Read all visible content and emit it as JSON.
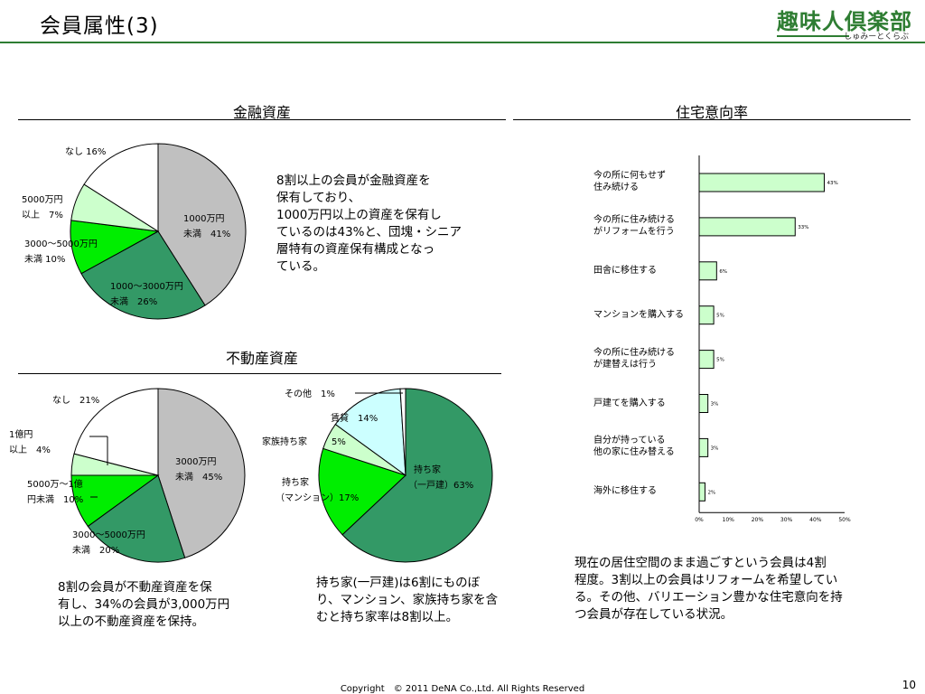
{
  "header": {
    "title": "会員属性(3)",
    "logo_main": "趣味人倶楽部",
    "logo_sub": "しゅみーとくらぶ"
  },
  "sections": {
    "financial": "金融資産",
    "housing": "住宅意向率",
    "real_estate": "不動産資産"
  },
  "financial_pie": {
    "labels": {
      "none": "なし 16%",
      "over5000_a": "5000万円",
      "over5000_b": "以上　7%",
      "r3000_5000_a": "3000～5000万円",
      "r3000_5000_b": "未満 10%",
      "r1000_3000_a": "1000～3000万円",
      "r1000_3000_b": "未満　26%",
      "under1000_a": "1000万円",
      "under1000_b": "未満　41%"
    },
    "note": [
      "8割以上の会員が金融資産を",
      "保有しており、",
      "1000万円以上の資産を保有し",
      "ているのは43%と、団塊・シニア",
      "層特有の資産保有構成となっ",
      "ている。"
    ]
  },
  "real_estate_pie": {
    "labels": {
      "none": "なし　21%",
      "over1oku_a": "1億円",
      "over1oku_b": "以上　4%",
      "r5000_1oku_a": "5000万～1億",
      "r5000_1oku_b": "円未満　10%",
      "r3000_5000_a": "3000～5000万円",
      "r3000_5000_b": "未満　20%",
      "under3000_a": "3000万円",
      "under3000_b": "未満　45%"
    },
    "note": [
      "8割の会員が不動産資産を保",
      "有し、34%の会員が3,000万円",
      "以上の不動産資産を保持。"
    ]
  },
  "housing_pie": {
    "labels": {
      "other": "その他　1%",
      "rent": "賃貸　14%",
      "family": "家族持ち家",
      "family_pct": "5%",
      "mansion_a": "持ち家",
      "mansion_b": "（マンション）17%",
      "house_a": "持ち家",
      "house_b": "（一戸建）63%"
    },
    "note": [
      "持ち家(一戸建)は6割にものぼ",
      "り、マンション、家族持ち家を含",
      "むと持ち家率は8割以上。"
    ]
  },
  "bar_chart": {
    "ticks": [
      "0%",
      "10%",
      "20%",
      "30%",
      "40%",
      "50%"
    ],
    "items": [
      {
        "label_a": "今の所に何もせず",
        "label_b": "住み続ける",
        "pct": "43%"
      },
      {
        "label_a": "今の所に住み続ける",
        "label_b": "がリフォームを行う",
        "pct": "33%"
      },
      {
        "label_a": "田舎に移住する",
        "label_b": "",
        "pct": "6%"
      },
      {
        "label_a": "マンションを購入する",
        "label_b": "",
        "pct": "5%"
      },
      {
        "label_a": "今の所に住み続ける",
        "label_b": "が建替えは行う",
        "pct": "5%"
      },
      {
        "label_a": "戸建てを購入する",
        "label_b": "",
        "pct": "3%"
      },
      {
        "label_a": "自分が持っている",
        "label_b": "他の家に住み替える",
        "pct": "3%"
      },
      {
        "label_a": "海外に移住する",
        "label_b": "",
        "pct": "2%"
      }
    ],
    "note": [
      "現在の居住空間のまま過ごすという会員は4割",
      "程度。3割以上の会員はリフォームを希望してい",
      "る。その他、バリエーション豊かな住宅意向を持",
      "つ会員が存在している状況。"
    ]
  },
  "chart_data": [
    {
      "type": "pie",
      "title": "金融資産",
      "categories": [
        "1000万円未満",
        "1000～3000万円未満",
        "3000～5000万円未満",
        "5000万円以上",
        "なし"
      ],
      "values": [
        41,
        26,
        10,
        7,
        16
      ],
      "colors": [
        "#c0c0c0",
        "#339966",
        "#00ee00",
        "#ccffcc",
        "#ffffff"
      ]
    },
    {
      "type": "pie",
      "title": "不動産資産",
      "categories": [
        "3000万円未満",
        "3000～5000万円未満",
        "5000万～1億円未満",
        "1億円以上",
        "なし"
      ],
      "values": [
        45,
        20,
        10,
        4,
        21
      ],
      "colors": [
        "#c0c0c0",
        "#339966",
        "#00ee00",
        "#ccffcc",
        "#ffffff"
      ]
    },
    {
      "type": "pie",
      "categories": [
        "持ち家（一戸建）",
        "持ち家（マンション）",
        "家族持ち家",
        "賃貸",
        "その他"
      ],
      "values": [
        63,
        17,
        5,
        14,
        1
      ],
      "colors": [
        "#339966",
        "#00ee00",
        "#ccffcc",
        "#ccffff",
        "#ffffff"
      ]
    },
    {
      "type": "bar",
      "title": "住宅意向率",
      "orientation": "horizontal",
      "categories": [
        "今の所に何もせず住み続ける",
        "今の所に住み続けるがリフォームを行う",
        "田舎に移住する",
        "マンションを購入する",
        "今の所に住み続けるが建替えは行う",
        "戸建てを購入する",
        "自分が持っている他の家に住み替える",
        "海外に移住する"
      ],
      "values": [
        43,
        33,
        6,
        5,
        5,
        3,
        3,
        2
      ],
      "xlim": [
        0,
        50
      ],
      "bar_color": "#ccffcc"
    }
  ],
  "footer": {
    "copyright": "Copyright　© 2011 DeNA Co.,Ltd. All Rights Reserved",
    "page": "10"
  }
}
